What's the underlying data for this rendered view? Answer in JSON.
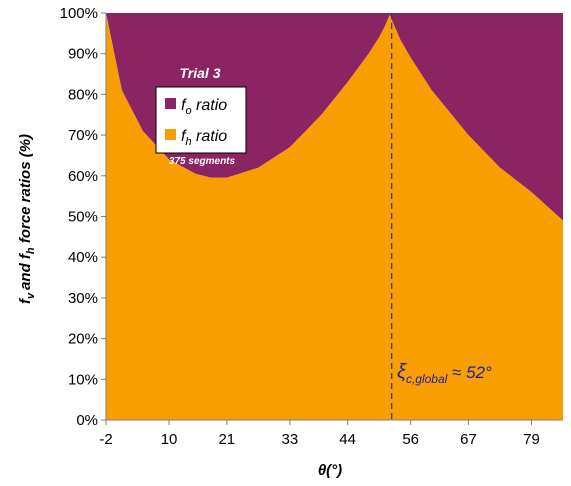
{
  "chart_data": {
    "type": "area",
    "stacked": true,
    "x_tick_labels": [
      "-2",
      "10",
      "21",
      "33",
      "44",
      "56",
      "67",
      "79"
    ],
    "x_tick_values": [
      -2,
      10,
      21,
      33,
      44,
      56,
      67,
      79
    ],
    "xlim": [
      -2,
      85
    ],
    "ylim": [
      0,
      100
    ],
    "y_tick_values": [
      0,
      10,
      20,
      30,
      40,
      50,
      60,
      70,
      80,
      90,
      100
    ],
    "y_tick_suffix": "%",
    "xlabel": "θ(°)",
    "ylabel": {
      "pre": "f",
      "sub1": "v",
      "mid": "and f",
      "sub2": "h",
      "post": " force ratios (%)"
    },
    "series": [
      {
        "name_main": "f",
        "name_sub": "o",
        "name_rest": " ratio",
        "color": "#8b2463",
        "x": [
          -2,
          1,
          5,
          10,
          15,
          18,
          21,
          27,
          33,
          39,
          44,
          48,
          50,
          51,
          52,
          53,
          54,
          56,
          60,
          67,
          73,
          79,
          85
        ],
        "values": [
          0,
          19,
          29,
          36,
          39.5,
          40.5,
          40.5,
          38,
          33,
          25,
          17,
          10,
          6,
          3.5,
          0.5,
          3.5,
          6.5,
          11,
          19,
          30,
          38,
          44,
          51
        ]
      },
      {
        "name_main": "f",
        "name_sub": "h",
        "name_rest": " ratio",
        "color": "#f99e00",
        "x": [
          -2,
          1,
          5,
          10,
          15,
          18,
          21,
          27,
          33,
          39,
          44,
          48,
          50,
          51,
          52,
          53,
          54,
          56,
          60,
          67,
          73,
          79,
          85
        ],
        "values": [
          100,
          81,
          71,
          64,
          60.5,
          59.5,
          59.5,
          62,
          67,
          75,
          83,
          90,
          94,
          96.5,
          99.5,
          96.5,
          93.5,
          89,
          81,
          70,
          62,
          56,
          49
        ]
      }
    ],
    "legend": {
      "title": "Trial 3",
      "note": "375 segments",
      "placement": "upper-left"
    },
    "annotation": {
      "symbol": "ξ",
      "sub": "c,global",
      "rest": " ≈ 52°",
      "x": 52
    },
    "grid": false
  }
}
